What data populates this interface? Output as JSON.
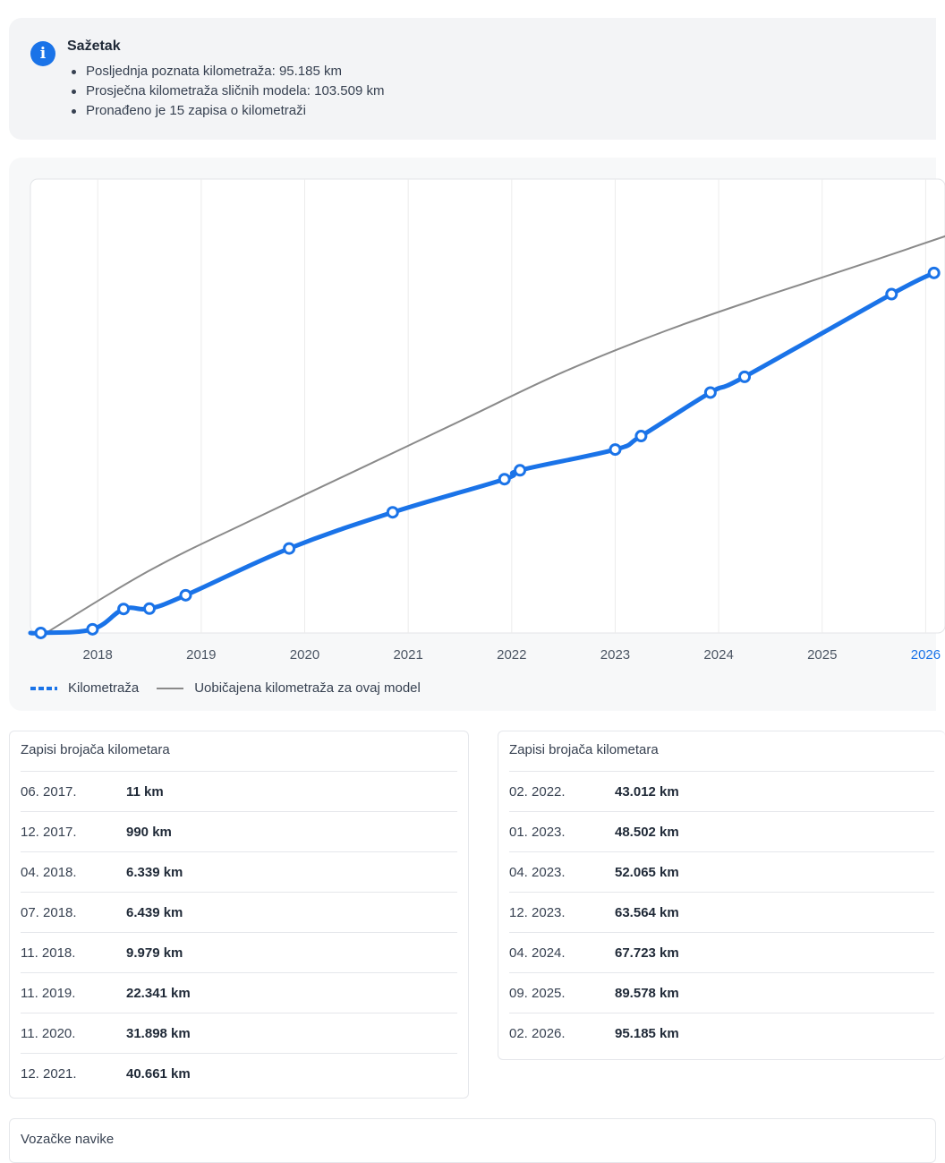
{
  "summary": {
    "title": "Sažetak",
    "items": [
      "Posljednja poznata kilometraža: 95.185 km",
      "Prosječna kilometraža sličnih modela: 103.509 km",
      "Pronađeno je 15 zapisa o kilometraži"
    ]
  },
  "colors": {
    "accent": "#1a73e8",
    "reference_line": "#8a8a8a"
  },
  "chart_data": {
    "type": "line",
    "x_ticks": [
      "2018",
      "2019",
      "2020",
      "2021",
      "2022",
      "2023",
      "2024",
      "2025",
      "2026"
    ],
    "highlighted_tick": "2026",
    "x_range": [
      2017.35,
      2026.1
    ],
    "y_range": [
      0,
      100000
    ],
    "grid": true,
    "legend_position": "bottom-left",
    "series": [
      {
        "name": "Kilometraža",
        "style": "dotted-thick",
        "points": [
          {
            "x": 2017.45,
            "y": 11
          },
          {
            "x": 2017.95,
            "y": 990
          },
          {
            "x": 2018.25,
            "y": 6339
          },
          {
            "x": 2018.5,
            "y": 6439
          },
          {
            "x": 2018.85,
            "y": 9979
          },
          {
            "x": 2019.85,
            "y": 22341
          },
          {
            "x": 2020.85,
            "y": 31898
          },
          {
            "x": 2021.93,
            "y": 40661
          },
          {
            "x": 2022.08,
            "y": 43012
          },
          {
            "x": 2023.0,
            "y": 48502
          },
          {
            "x": 2023.25,
            "y": 52065
          },
          {
            "x": 2023.92,
            "y": 63564
          },
          {
            "x": 2024.25,
            "y": 67723
          },
          {
            "x": 2025.67,
            "y": 89578
          },
          {
            "x": 2026.08,
            "y": 95185
          }
        ]
      },
      {
        "name": "Uobičajena kilometraža za ovaj model",
        "style": "thin-solid",
        "points": [
          {
            "x": 2017.5,
            "y": 0
          },
          {
            "x": 2018.5,
            "y": 16500
          },
          {
            "x": 2019.5,
            "y": 30000
          },
          {
            "x": 2020.5,
            "y": 43000
          },
          {
            "x": 2021.5,
            "y": 56000
          },
          {
            "x": 2022.5,
            "y": 69000
          },
          {
            "x": 2023.5,
            "y": 80000
          },
          {
            "x": 2024.5,
            "y": 89500
          },
          {
            "x": 2025.5,
            "y": 98500
          },
          {
            "x": 2026.2,
            "y": 105000
          }
        ]
      }
    ]
  },
  "records_left": {
    "title": "Zapisi brojača kilometara",
    "rows": [
      {
        "date": "06. 2017.",
        "km": "11 km"
      },
      {
        "date": "12. 2017.",
        "km": "990 km"
      },
      {
        "date": "04. 2018.",
        "km": "6.339 km"
      },
      {
        "date": "07. 2018.",
        "km": "6.439 km"
      },
      {
        "date": "11. 2018.",
        "km": "9.979 km"
      },
      {
        "date": "11. 2019.",
        "km": "22.341 km"
      },
      {
        "date": "11. 2020.",
        "km": "31.898 km"
      },
      {
        "date": "12. 2021.",
        "km": "40.661 km"
      }
    ]
  },
  "records_right": {
    "title": "Zapisi brojača kilometara",
    "rows": [
      {
        "date": "02. 2022.",
        "km": "43.012 km"
      },
      {
        "date": "01. 2023.",
        "km": "48.502 km"
      },
      {
        "date": "04. 2023.",
        "km": "52.065 km"
      },
      {
        "date": "12. 2023.",
        "km": "63.564 km"
      },
      {
        "date": "04. 2024.",
        "km": "67.723 km"
      },
      {
        "date": "09. 2025.",
        "km": "89.578 km"
      },
      {
        "date": "02. 2026.",
        "km": "95.185 km"
      }
    ]
  },
  "habits": {
    "title": "Vozačke navike"
  }
}
